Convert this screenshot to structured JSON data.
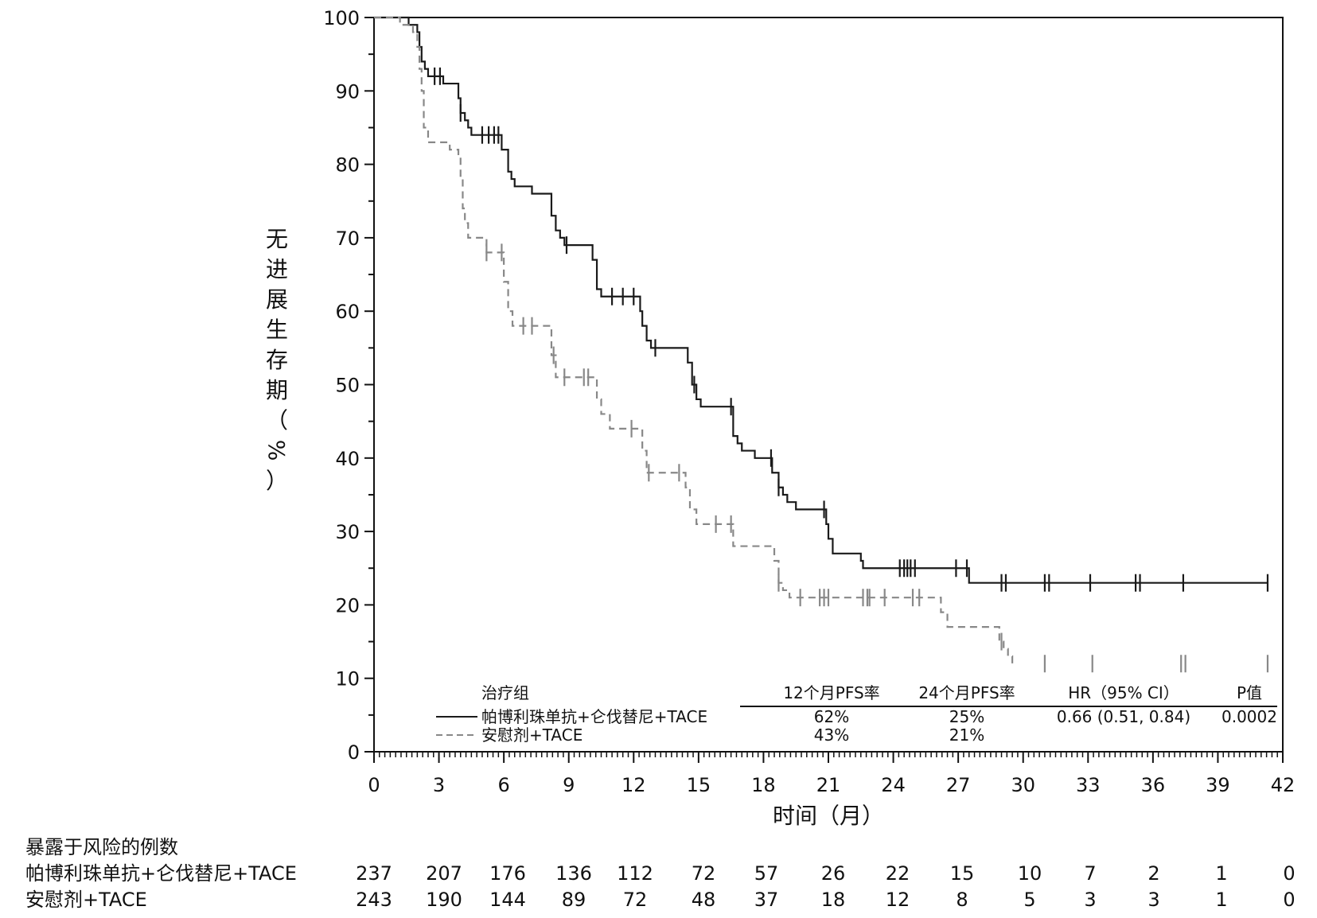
{
  "chart_data": {
    "type": "line",
    "ylabel_chars": [
      "无",
      "进",
      "展",
      "生",
      "存",
      "期",
      "（",
      "%",
      "）"
    ],
    "xlabel": "时间（月）",
    "ylim": [
      0,
      100
    ],
    "xlim": [
      0,
      42
    ],
    "x_ticks": [
      0,
      3,
      6,
      9,
      12,
      15,
      18,
      21,
      24,
      27,
      30,
      33,
      36,
      39,
      42
    ],
    "y_ticks": [
      0,
      10,
      20,
      30,
      40,
      50,
      60,
      70,
      80,
      90,
      100
    ],
    "grid": false,
    "legend_position": "bottom",
    "series": [
      {
        "name": "帕博利珠单抗+仑伐替尼+TACE",
        "color": "#1a1a1a",
        "style": "solid",
        "x": [
          0,
          1.6,
          2.0,
          2.1,
          2.2,
          2.35,
          2.5,
          2.7,
          3.2,
          3.9,
          4.0,
          4.2,
          4.35,
          4.5,
          5.9,
          6.2,
          6.35,
          6.5,
          7.3,
          8.2,
          8.4,
          8.6,
          8.8,
          10.1,
          10.3,
          10.5,
          12.3,
          12.4,
          12.6,
          12.8,
          14.5,
          14.7,
          14.9,
          15.1,
          16.6,
          16.8,
          17.0,
          17.6,
          18.4,
          18.7,
          18.9,
          19.1,
          19.5,
          20.9,
          21.0,
          21.2,
          22.5,
          22.6,
          27.5,
          41.3
        ],
        "y": [
          100,
          99,
          98,
          96,
          94,
          93,
          92,
          92,
          91,
          89,
          87,
          86,
          85,
          84,
          82,
          79,
          78,
          77,
          76,
          73,
          71,
          70,
          69,
          67,
          63,
          62,
          60,
          58,
          56,
          55,
          53,
          50,
          48,
          47,
          43,
          42,
          41,
          40,
          38,
          36,
          35,
          34,
          33,
          31,
          29,
          27,
          26,
          25,
          23,
          23
        ],
        "censor_x": [
          2.8,
          3.05,
          4.0,
          5.0,
          5.3,
          5.55,
          5.75,
          8.9,
          11.0,
          11.5,
          12.0,
          13.0,
          14.8,
          16.5,
          18.35,
          18.7,
          20.8,
          24.3,
          24.5,
          24.65,
          24.8,
          25.0,
          26.9,
          27.4,
          29.0,
          29.2,
          31.0,
          31.2,
          33.1,
          35.2,
          35.4,
          37.4,
          41.3
        ]
      },
      {
        "name": "安慰剂+TACE",
        "color": "#888888",
        "style": "dashed",
        "x": [
          0,
          1.2,
          1.8,
          2.0,
          2.1,
          2.2,
          2.3,
          2.5,
          3.0,
          3.5,
          3.9,
          4.0,
          4.1,
          4.2,
          4.35,
          5.2,
          5.5,
          6.0,
          6.2,
          6.4,
          8.2,
          8.4,
          10.3,
          10.5,
          10.9,
          12.4,
          12.6,
          14.4,
          14.6,
          14.9,
          16.6,
          16.8,
          18.5,
          18.7,
          18.9,
          19.2,
          26.2,
          26.5,
          27.2,
          28.9,
          29.1,
          29.3,
          29.5
        ],
        "y": [
          100,
          99,
          98,
          96,
          93,
          90,
          85,
          83,
          83,
          82,
          81,
          78,
          74,
          72,
          70,
          68,
          68,
          64,
          60,
          58,
          54,
          51,
          48,
          46,
          44,
          41,
          38,
          36,
          33,
          31,
          28,
          28,
          26,
          23,
          22,
          21,
          19,
          17,
          17,
          15,
          14,
          13,
          12
        ],
        "censor_x": [
          5.2,
          5.9,
          6.9,
          7.3,
          8.3,
          8.8,
          9.7,
          9.9,
          11.9,
          12.7,
          14.1,
          15.8,
          16.5,
          18.7,
          19.7,
          20.6,
          20.8,
          21.0,
          22.6,
          22.8,
          22.9,
          23.6,
          24.9,
          25.2,
          29.0,
          31.0,
          33.2,
          37.3,
          37.5,
          41.3
        ]
      }
    ],
    "legend_table": {
      "group_header": "治疗组",
      "col_headers": [
        "12个月PFS率",
        "24个月PFS率",
        "HR（95% CI）",
        "P值"
      ],
      "rows": [
        {
          "name": "帕博利珠单抗+仑伐替尼+TACE",
          "values": [
            "62%",
            "25%",
            "0.66 (0.51, 0.84)",
            "0.0002"
          ]
        },
        {
          "name": "安慰剂+TACE",
          "values": [
            "43%",
            "21%",
            "",
            ""
          ]
        }
      ]
    },
    "risk_table": {
      "title": "暴露于风险的例数",
      "rows": [
        {
          "name": "帕博利珠单抗+仑伐替尼+TACE",
          "values": [
            "237",
            "207",
            "176",
            "136",
            "112",
            "72",
            "57",
            "26",
            "22",
            "15",
            "10",
            "7",
            "2",
            "1",
            "0"
          ]
        },
        {
          "name": "安慰剂+TACE",
          "values": [
            "243",
            "190",
            "144",
            "89",
            "72",
            "48",
            "37",
            "18",
            "12",
            "8",
            "5",
            "3",
            "3",
            "1",
            "0"
          ]
        }
      ]
    }
  }
}
